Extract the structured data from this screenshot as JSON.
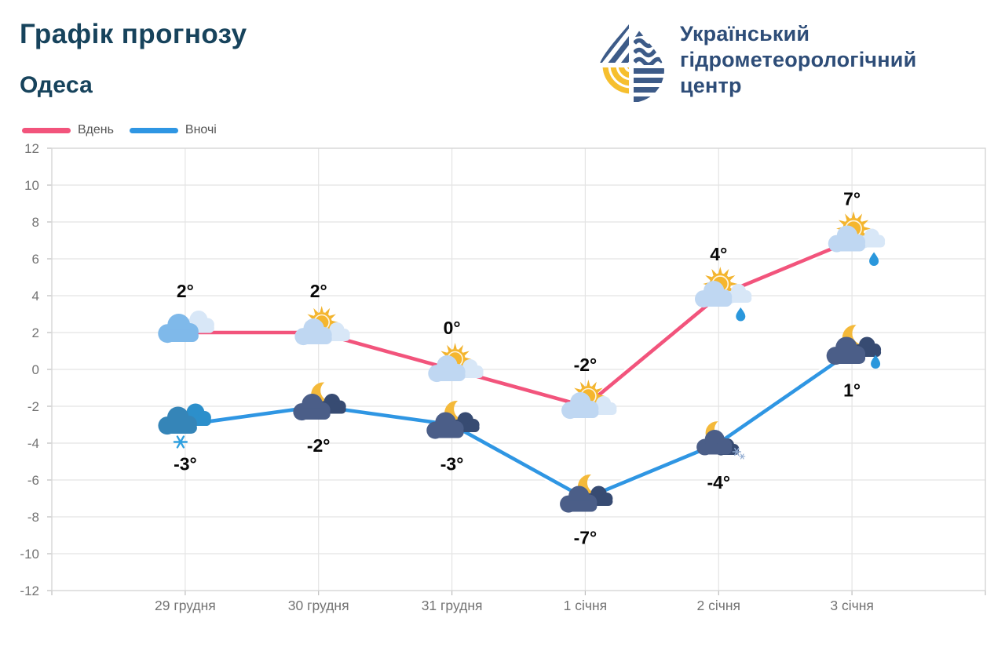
{
  "header": {
    "title": "Графік прогнозу",
    "subtitle": "Одеса",
    "org": {
      "line1": "Український",
      "line2": "гідрометеорологічний",
      "line3": "центр"
    }
  },
  "legend": [
    {
      "label": "Вдень",
      "color": "#f2547c"
    },
    {
      "label": "Вночі",
      "color": "#2f96e3"
    }
  ],
  "chart_data": {
    "type": "line",
    "title": "Графік прогнозу — Одеса",
    "categories": [
      "29 грудня",
      "30 грудня",
      "31 грудня",
      "1 січня",
      "2 січня",
      "3 січня"
    ],
    "series": [
      {
        "name": "Вдень",
        "color": "#f2547c",
        "values": [
          2,
          2,
          0,
          -2,
          4,
          7
        ],
        "point_labels": [
          "2°",
          "2°",
          "0°",
          "-2°",
          "4°",
          "7°"
        ],
        "icons": [
          "cloudy",
          "sun-cloud",
          "sun-cloud",
          "sun-cloud",
          "sun-cloud-rain",
          "sun-cloud-rain"
        ],
        "labels_position": "above"
      },
      {
        "name": "Вночі",
        "color": "#2f96e3",
        "values": [
          -3,
          -2,
          -3,
          -7,
          -4,
          1
        ],
        "point_labels": [
          "-3°",
          "-2°",
          "-3°",
          "-7°",
          "-4°",
          "1°"
        ],
        "icons": [
          "cloud-snow",
          "moon-cloud",
          "moon-cloud",
          "moon-cloud",
          "moon-cloud-snow",
          "moon-cloud-rain"
        ],
        "labels_position": "below"
      }
    ],
    "ylim": [
      -12,
      12
    ],
    "ytick_step": 2,
    "yticks": [
      12,
      10,
      8,
      6,
      4,
      2,
      0,
      -2,
      -4,
      -6,
      -8,
      -10,
      -12
    ],
    "grid": true,
    "legend_position": "top-left",
    "colors": {
      "grid": "#e4e4e4",
      "axis_border": "#d6d6d6",
      "tick": "#bdbdbd",
      "axis_text": "#737373",
      "point_label_text": "#070707",
      "sun": "#f2b32d",
      "moon": "#f4b93a",
      "day_cloud": "#bfd7f2",
      "day_cloud_light": "#d8e7f7",
      "cloudy_main": "#7fb9ea",
      "snow_cloud": "#3585b8",
      "snow_cloud_back": "#2c8fcb",
      "night_cloud": "#4b5e88",
      "night_cloud_back": "#374b72",
      "precip_blue": "#2a97dc"
    }
  }
}
